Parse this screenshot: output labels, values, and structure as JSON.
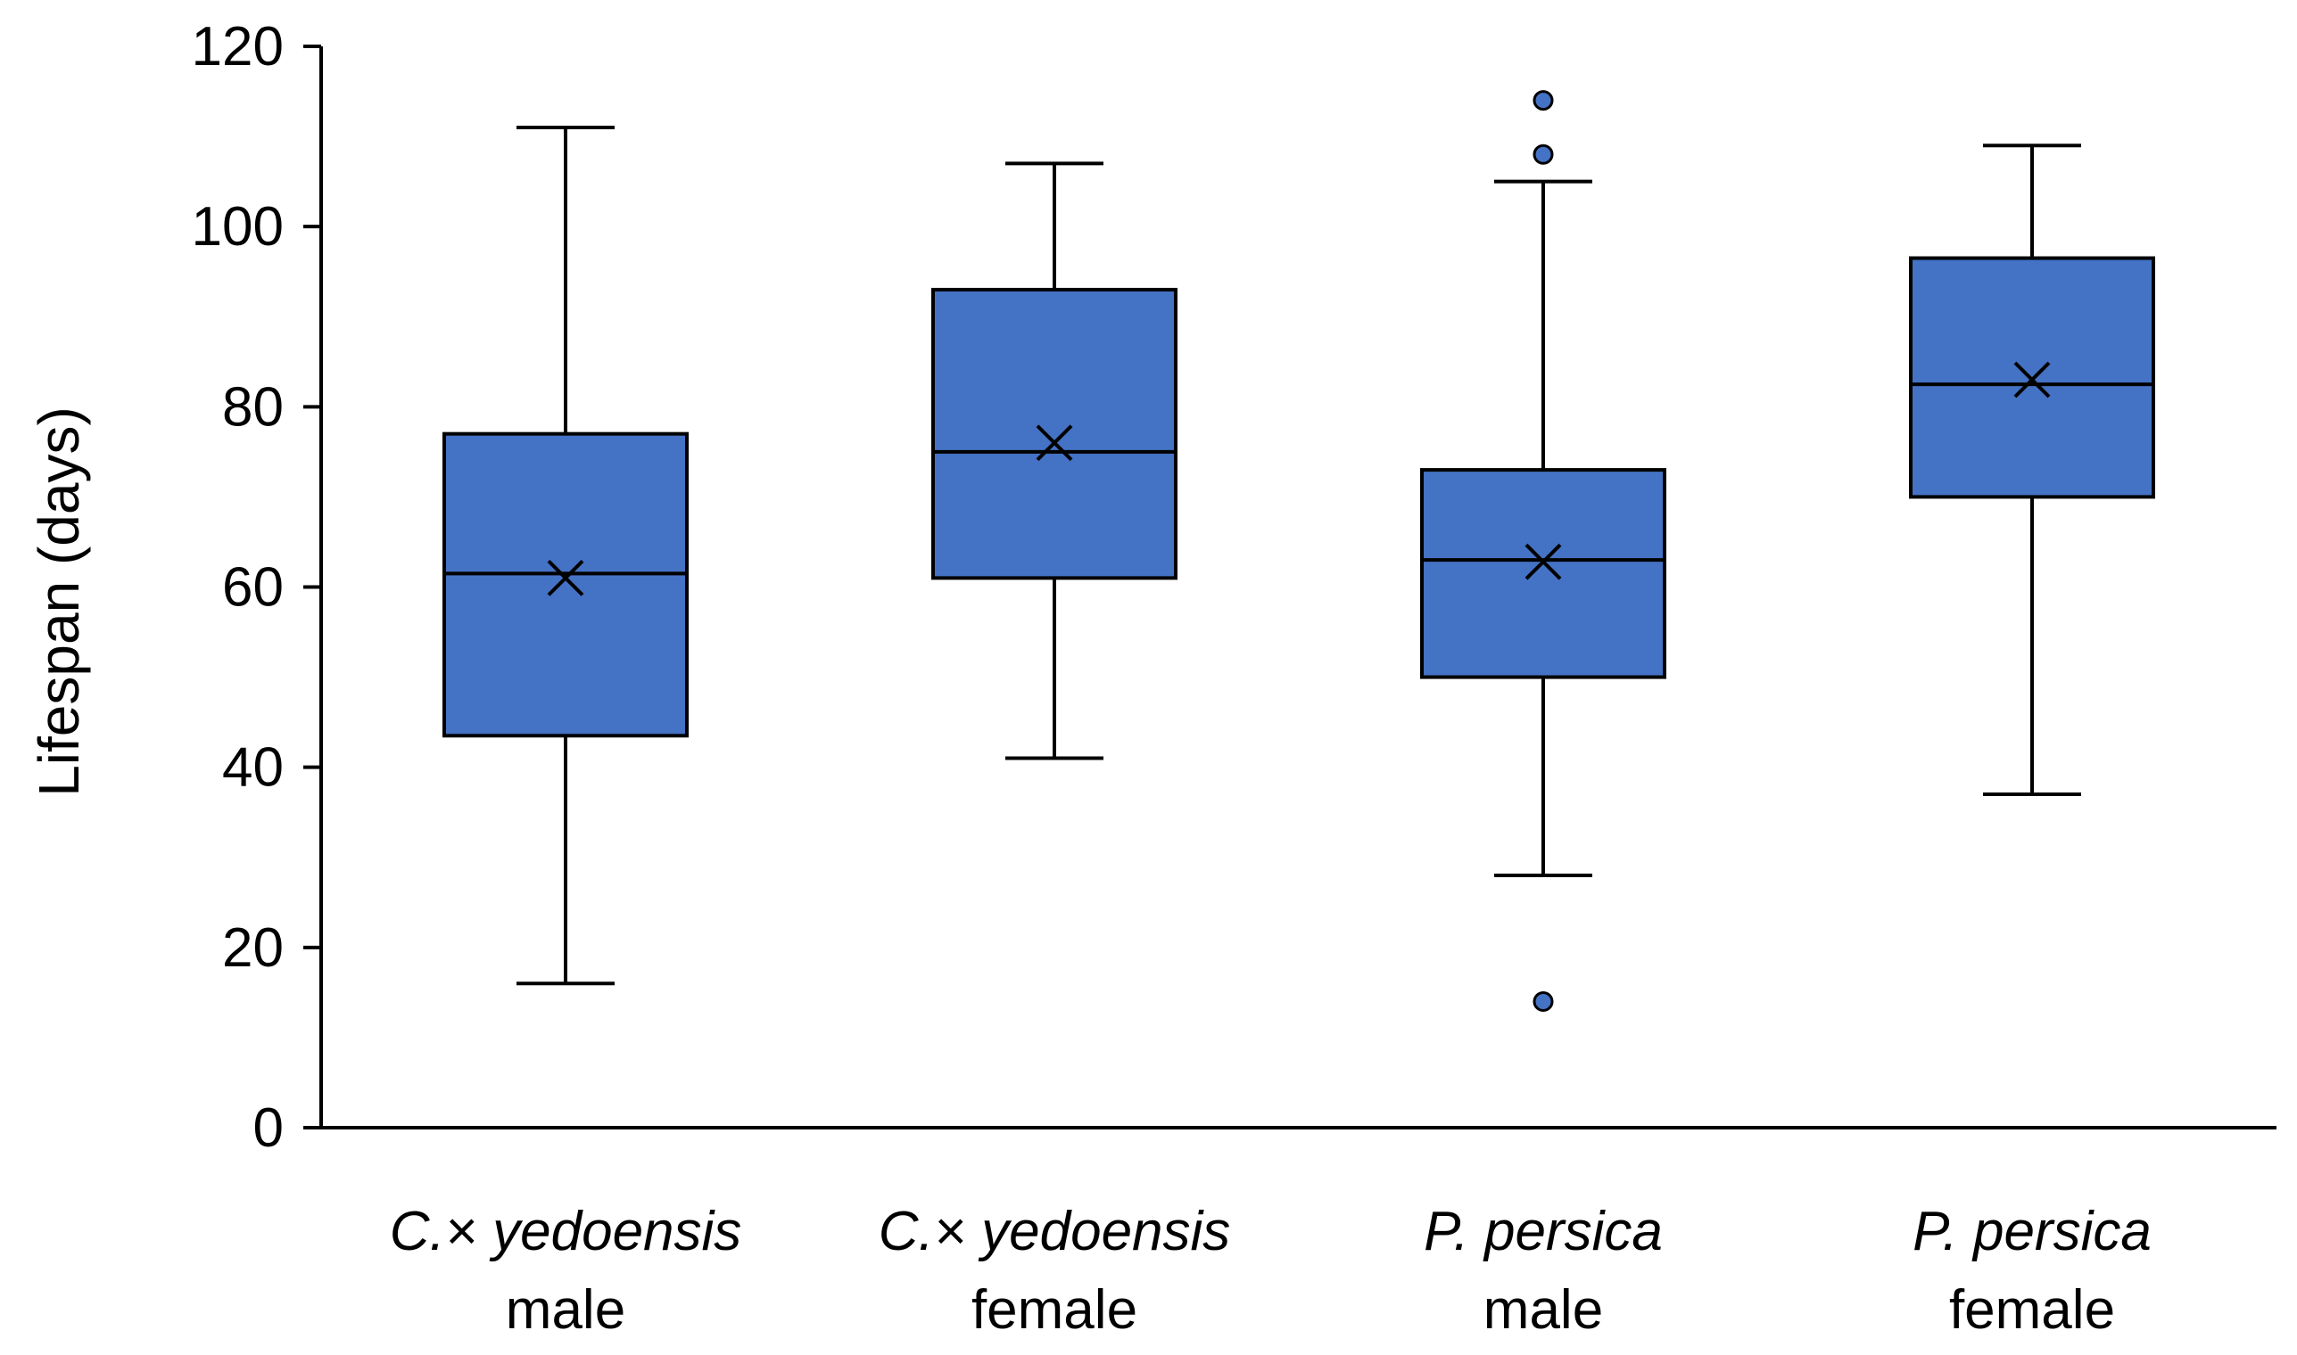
{
  "chart_data": {
    "type": "box",
    "title": "",
    "xlabel": "",
    "ylabel": "Lifespan (days)",
    "ylim": [
      0,
      120
    ],
    "yticks": [
      0,
      20,
      40,
      60,
      80,
      100,
      120
    ],
    "grid": false,
    "box_color": "#4472C4",
    "line_color": "#000000",
    "categories": [
      {
        "species": "C.× yedoensis",
        "sex": "male"
      },
      {
        "species": "C.× yedoensis",
        "sex": "female"
      },
      {
        "species": "P. persica",
        "sex": "male"
      },
      {
        "species": "P. persica",
        "sex": "female"
      }
    ],
    "series": [
      {
        "name": "C.× yedoensis male",
        "whisker_low": 16,
        "q1": 43.5,
        "median": 61.5,
        "q3": 77,
        "whisker_high": 111,
        "mean": 61,
        "outliers": []
      },
      {
        "name": "C.× yedoensis female",
        "whisker_low": 41,
        "q1": 61,
        "median": 75,
        "q3": 93,
        "whisker_high": 107,
        "mean": 76,
        "outliers": []
      },
      {
        "name": "P. persica male",
        "whisker_low": 28,
        "q1": 50,
        "median": 63,
        "q3": 73,
        "whisker_high": 105,
        "mean": 62.8,
        "outliers": [
          14,
          108,
          114
        ]
      },
      {
        "name": "P. persica female",
        "whisker_low": 37,
        "q1": 70,
        "median": 82.5,
        "q3": 96.5,
        "whisker_high": 109,
        "mean": 83,
        "outliers": []
      }
    ]
  }
}
